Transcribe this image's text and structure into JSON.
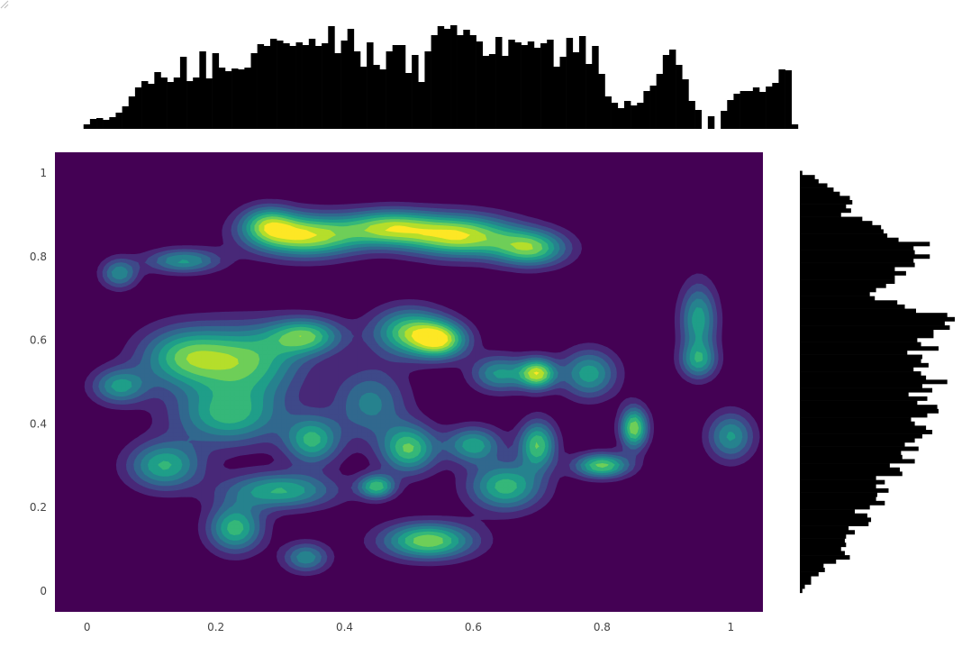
{
  "chart_data": {
    "type": "contour",
    "title": "",
    "xlabel": "",
    "ylabel": "",
    "xlim": [
      -0.05,
      1.05
    ],
    "ylim": [
      -0.05,
      1.05
    ],
    "x_ticks": [
      "0",
      "0.2",
      "0.4",
      "0.6",
      "0.8",
      "1"
    ],
    "y_ticks": [
      "0",
      "0.2",
      "0.4",
      "0.6",
      "0.8",
      "1"
    ],
    "x_tick_values": [
      0,
      0.2,
      0.4,
      0.6,
      0.8,
      1
    ],
    "y_tick_values": [
      0,
      0.2,
      0.4,
      0.6,
      0.8,
      1
    ],
    "colorscale": [
      "#440154",
      "#482878",
      "#3e4989",
      "#31688e",
      "#26828e",
      "#1f9e89",
      "#35b779",
      "#6ece58",
      "#b5de2b",
      "#fde725"
    ],
    "levels": 9,
    "density_clusters": [
      {
        "x": 0.34,
        "y": 0.85,
        "sx": 0.06,
        "sy": 0.035,
        "w": 1.0
      },
      {
        "x": 0.47,
        "y": 0.87,
        "sx": 0.05,
        "sy": 0.03,
        "w": 0.8
      },
      {
        "x": 0.58,
        "y": 0.85,
        "sx": 0.06,
        "sy": 0.035,
        "w": 1.0
      },
      {
        "x": 0.69,
        "y": 0.82,
        "sx": 0.04,
        "sy": 0.03,
        "w": 0.8
      },
      {
        "x": 0.28,
        "y": 0.88,
        "sx": 0.03,
        "sy": 0.03,
        "w": 0.6
      },
      {
        "x": 0.15,
        "y": 0.79,
        "sx": 0.04,
        "sy": 0.02,
        "w": 0.6
      },
      {
        "x": 0.05,
        "y": 0.76,
        "sx": 0.02,
        "sy": 0.025,
        "w": 0.55
      },
      {
        "x": 0.05,
        "y": 0.49,
        "sx": 0.03,
        "sy": 0.03,
        "w": 0.6
      },
      {
        "x": 0.15,
        "y": 0.56,
        "sx": 0.05,
        "sy": 0.05,
        "w": 0.7
      },
      {
        "x": 0.25,
        "y": 0.55,
        "sx": 0.06,
        "sy": 0.06,
        "w": 0.75
      },
      {
        "x": 0.34,
        "y": 0.61,
        "sx": 0.04,
        "sy": 0.03,
        "w": 0.75
      },
      {
        "x": 0.22,
        "y": 0.42,
        "sx": 0.06,
        "sy": 0.05,
        "w": 0.7
      },
      {
        "x": 0.35,
        "y": 0.36,
        "sx": 0.03,
        "sy": 0.04,
        "w": 0.7
      },
      {
        "x": 0.12,
        "y": 0.3,
        "sx": 0.04,
        "sy": 0.04,
        "w": 0.7
      },
      {
        "x": 0.3,
        "y": 0.24,
        "sx": 0.06,
        "sy": 0.03,
        "w": 0.7
      },
      {
        "x": 0.23,
        "y": 0.15,
        "sx": 0.03,
        "sy": 0.04,
        "w": 0.75
      },
      {
        "x": 0.34,
        "y": 0.08,
        "sx": 0.025,
        "sy": 0.025,
        "w": 0.55
      },
      {
        "x": 0.5,
        "y": 0.62,
        "sx": 0.04,
        "sy": 0.04,
        "w": 0.8
      },
      {
        "x": 0.55,
        "y": 0.6,
        "sx": 0.03,
        "sy": 0.03,
        "w": 0.85
      },
      {
        "x": 0.7,
        "y": 0.52,
        "sx": 0.02,
        "sy": 0.025,
        "w": 0.95
      },
      {
        "x": 0.64,
        "y": 0.52,
        "sx": 0.03,
        "sy": 0.03,
        "w": 0.6
      },
      {
        "x": 0.78,
        "y": 0.52,
        "sx": 0.03,
        "sy": 0.04,
        "w": 0.65
      },
      {
        "x": 0.5,
        "y": 0.34,
        "sx": 0.03,
        "sy": 0.04,
        "w": 0.8
      },
      {
        "x": 0.6,
        "y": 0.35,
        "sx": 0.03,
        "sy": 0.03,
        "w": 0.65
      },
      {
        "x": 0.7,
        "y": 0.35,
        "sx": 0.02,
        "sy": 0.04,
        "w": 0.8
      },
      {
        "x": 0.85,
        "y": 0.39,
        "sx": 0.015,
        "sy": 0.035,
        "w": 0.9
      },
      {
        "x": 0.8,
        "y": 0.3,
        "sx": 0.03,
        "sy": 0.02,
        "w": 0.85
      },
      {
        "x": 0.45,
        "y": 0.25,
        "sx": 0.02,
        "sy": 0.02,
        "w": 0.75
      },
      {
        "x": 0.65,
        "y": 0.25,
        "sx": 0.04,
        "sy": 0.04,
        "w": 0.75
      },
      {
        "x": 0.53,
        "y": 0.12,
        "sx": 0.05,
        "sy": 0.03,
        "w": 0.9
      },
      {
        "x": 0.95,
        "y": 0.65,
        "sx": 0.02,
        "sy": 0.06,
        "w": 0.65
      },
      {
        "x": 0.95,
        "y": 0.55,
        "sx": 0.02,
        "sy": 0.03,
        "w": 0.55
      },
      {
        "x": 1.0,
        "y": 0.37,
        "sx": 0.025,
        "sy": 0.04,
        "w": 0.6
      },
      {
        "x": 0.44,
        "y": 0.45,
        "sx": 0.04,
        "sy": 0.06,
        "w": 0.5
      }
    ],
    "top_histogram": {
      "x_start": 0.0,
      "bin_width": 0.01,
      "counts": [
        5,
        11,
        12,
        10,
        13,
        18,
        25,
        36,
        46,
        53,
        50,
        63,
        57,
        52,
        57,
        80,
        53,
        57,
        86,
        56,
        84,
        68,
        64,
        67,
        66,
        68,
        84,
        94,
        92,
        100,
        98,
        95,
        92,
        96,
        93,
        100,
        92,
        95,
        114,
        84,
        98,
        111,
        86,
        69,
        96,
        71,
        66,
        86,
        93,
        93,
        62,
        82,
        52,
        86,
        104,
        114,
        111,
        115,
        104,
        110,
        104,
        97,
        81,
        83,
        102,
        81,
        99,
        96,
        93,
        97,
        90,
        95,
        99,
        69,
        80,
        101,
        85,
        103,
        72,
        92,
        61,
        36,
        29,
        23,
        31,
        26,
        29,
        42,
        48,
        61,
        82,
        88,
        71,
        55,
        31,
        21,
        0,
        14,
        0,
        20,
        32,
        39,
        42,
        42,
        46,
        41,
        47,
        51,
        66,
        65,
        5
      ]
    },
    "right_histogram": {
      "y_start": 0.0,
      "bin_width": 0.01,
      "counts": [
        2,
        4,
        9,
        9,
        15,
        20,
        19,
        29,
        40,
        36,
        33,
        37,
        36,
        37,
        44,
        39,
        55,
        57,
        54,
        44,
        56,
        68,
        61,
        62,
        71,
        61,
        68,
        61,
        82,
        80,
        72,
        92,
        82,
        81,
        95,
        84,
        92,
        98,
        106,
        101,
        92,
        89,
        102,
        111,
        110,
        94,
        102,
        87,
        106,
        98,
        118,
        101,
        97,
        91,
        103,
        97,
        98,
        86,
        111,
        97,
        94,
        107,
        107,
        120,
        116,
        124,
        118,
        93,
        84,
        78,
        60,
        56,
        61,
        69,
        76,
        76,
        85,
        76,
        92,
        91,
        104,
        92,
        91,
        104,
        79,
        70,
        67,
        65,
        58,
        50,
        33,
        41,
        37,
        42,
        40,
        32,
        27,
        22,
        15,
        12,
        2
      ]
    }
  }
}
